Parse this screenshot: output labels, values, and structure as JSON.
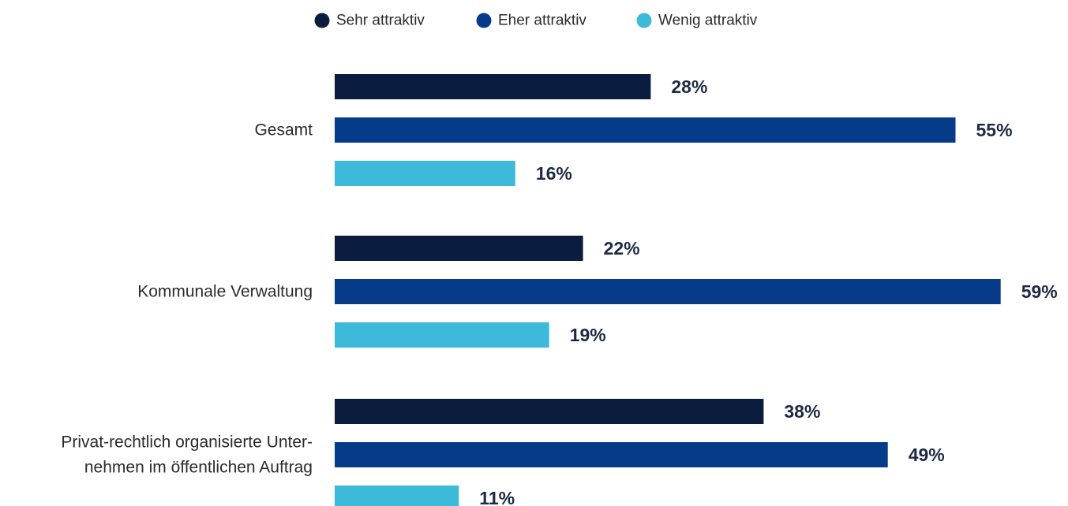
{
  "chart_data": {
    "type": "bar",
    "orientation": "horizontal",
    "title": "",
    "xlabel": "",
    "ylabel": "",
    "xlim": [
      0,
      100
    ],
    "grid": false,
    "legend_position": "top-center",
    "categories": [
      [
        "Gesamt"
      ],
      [
        "Kommunale Verwaltung"
      ],
      [
        "Privat-rechtlich organisierte Unter-",
        "nehmen im öffentlichen Auftrag"
      ]
    ],
    "series": [
      {
        "name": "Sehr attraktiv",
        "color": "#0b1d3f",
        "values": [
          28,
          22,
          38
        ],
        "labels": [
          "28%",
          "22%",
          "38%"
        ]
      },
      {
        "name": "Eher attraktiv",
        "color": "#063b8a",
        "values": [
          55,
          59,
          49
        ],
        "labels": [
          "55%",
          "59%",
          "49%"
        ]
      },
      {
        "name": "Wenig attraktiv",
        "color": "#3dbad9",
        "values": [
          16,
          19,
          11
        ],
        "labels": [
          "16%",
          "19%",
          "11%"
        ]
      }
    ]
  }
}
